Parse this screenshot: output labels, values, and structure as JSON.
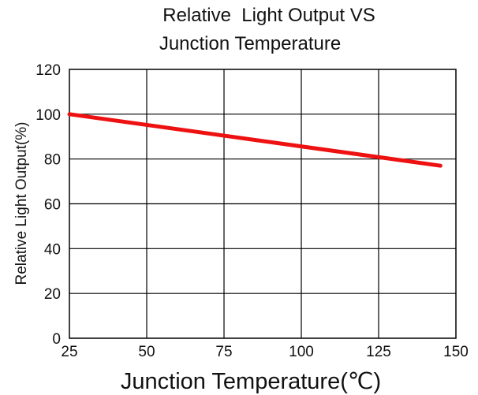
{
  "chart_data": {
    "type": "line",
    "title_lines": [
      "Relative  Light Output VS",
      "Junction Temperature"
    ],
    "xlabel": "Junction Temperature(℃)",
    "ylabel": "Relative Light Output(%)",
    "xlim": [
      25,
      150
    ],
    "ylim": [
      0,
      120
    ],
    "x_ticks": [
      25,
      50,
      75,
      100,
      125,
      150
    ],
    "y_ticks": [
      0,
      20,
      40,
      60,
      80,
      100,
      120
    ],
    "grid": true,
    "series": [
      {
        "color": "#ee1111",
        "x": [
          25,
          145
        ],
        "y": [
          100,
          77
        ]
      }
    ]
  }
}
